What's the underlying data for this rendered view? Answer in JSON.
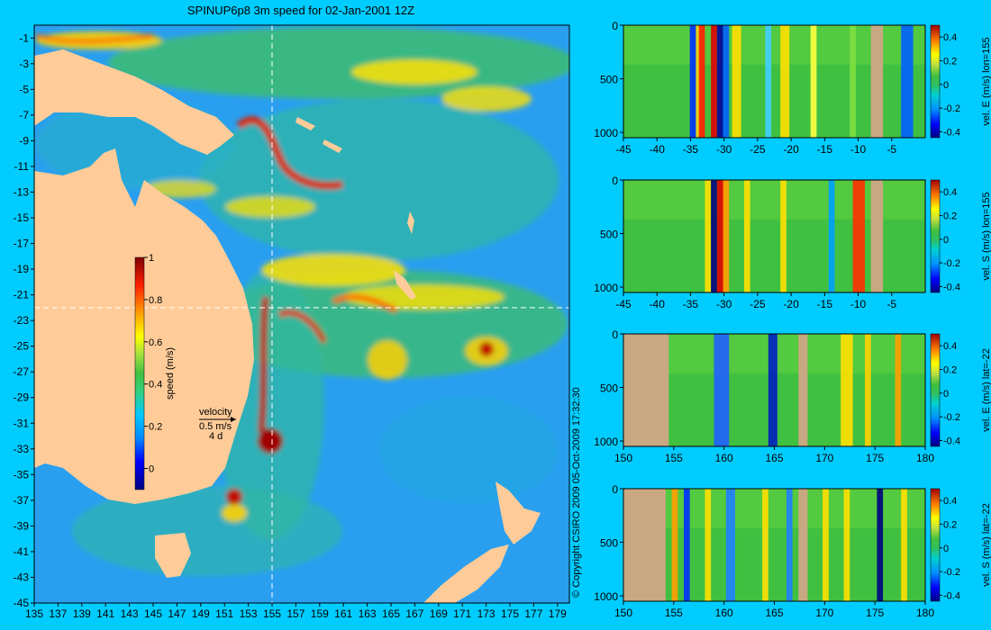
{
  "map": {
    "title": "SPINUP6p8 3m speed for 02-Jan-2001 12Z",
    "copyright": "© Copyright CSIRO 2009   05-Oct-2009 17:32:30",
    "x_ticks": [
      135,
      137,
      139,
      141,
      143,
      145,
      147,
      149,
      151,
      153,
      155,
      157,
      159,
      161,
      163,
      165,
      167,
      169,
      171,
      173,
      175,
      177,
      179
    ],
    "y_ticks": [
      -1,
      -3,
      -5,
      -7,
      -9,
      -11,
      -13,
      -15,
      -17,
      -19,
      -21,
      -23,
      -25,
      -27,
      -29,
      -31,
      -33,
      -35,
      -37,
      -39,
      -41,
      -43,
      -45
    ],
    "xlim": [
      135,
      180
    ],
    "ylim": [
      -45,
      0
    ],
    "section_lon": 155,
    "section_lat": -22,
    "land_color": "#ffcc99",
    "colorbar": {
      "label": "speed (m/s)",
      "ticks": [
        0,
        0.2,
        0.4,
        0.6,
        0.8,
        1
      ],
      "range": [
        -0.1,
        1
      ]
    },
    "velocity_key": {
      "title": "velocity",
      "speed": "0.5 m/s",
      "duration": "4 d"
    }
  },
  "chart_data": [
    {
      "type": "heatmap",
      "name": "panel-lon155-east",
      "x_ticks": [
        -45,
        -40,
        -35,
        -30,
        -25,
        -20,
        -15,
        -10,
        -5
      ],
      "y_ticks": [
        0,
        500,
        1000
      ],
      "xlim": [
        -45,
        0
      ],
      "ylim": [
        0,
        1050
      ],
      "colorbar_label": "vel. E (m/s) lon=155",
      "colorbar_ticks": [
        -0.4,
        -0.2,
        0,
        0.2,
        0.4
      ],
      "colorbar_range": [
        -0.45,
        0.5
      ]
    },
    {
      "type": "heatmap",
      "name": "panel-lon155-south",
      "x_ticks": [
        -45,
        -40,
        -35,
        -30,
        -25,
        -20,
        -15,
        -10,
        -5
      ],
      "y_ticks": [
        0,
        500,
        1000
      ],
      "xlim": [
        -45,
        0
      ],
      "ylim": [
        0,
        1050
      ],
      "colorbar_label": "vel. S (m/s) lon=155",
      "colorbar_ticks": [
        -0.4,
        -0.2,
        0,
        0.2,
        0.4
      ],
      "colorbar_range": [
        -0.45,
        0.5
      ]
    },
    {
      "type": "heatmap",
      "name": "panel-lat22-east",
      "x_ticks": [
        150,
        155,
        160,
        165,
        170,
        175,
        180
      ],
      "y_ticks": [
        0,
        500,
        1000
      ],
      "xlim": [
        150,
        180
      ],
      "ylim": [
        0,
        1050
      ],
      "colorbar_label": "vel. E (m/s) lat=-22",
      "colorbar_ticks": [
        -0.4,
        -0.2,
        0,
        0.2,
        0.4
      ],
      "colorbar_range": [
        -0.45,
        0.5
      ]
    },
    {
      "type": "heatmap",
      "name": "panel-lat22-south",
      "x_ticks": [
        150,
        155,
        160,
        165,
        170,
        175,
        180
      ],
      "y_ticks": [
        0,
        500,
        1000
      ],
      "xlim": [
        150,
        180
      ],
      "ylim": [
        0,
        1050
      ],
      "colorbar_label": "vel. S (m/s) lat=-22",
      "colorbar_ticks": [
        -0.4,
        -0.2,
        0,
        0.2,
        0.4
      ],
      "colorbar_range": [
        -0.45,
        0.5
      ]
    }
  ]
}
